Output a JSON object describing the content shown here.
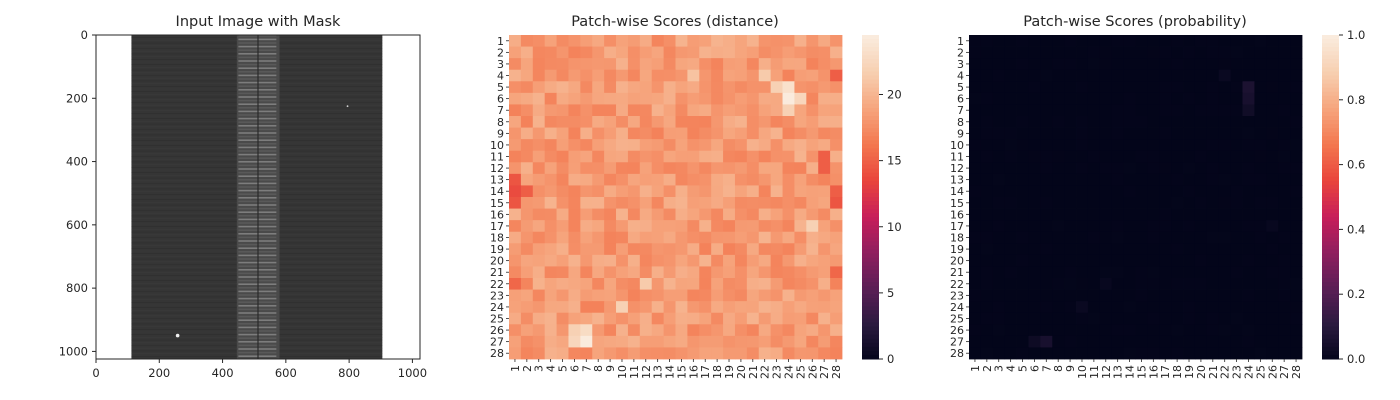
{
  "panels": [
    {
      "title": "Input Image with Mask",
      "type": "image",
      "xticks": [
        "0",
        "200",
        "400",
        "600",
        "800",
        "1000"
      ],
      "yticks": [
        "0",
        "200",
        "400",
        "600",
        "800",
        "1000"
      ],
      "xlim": [
        0,
        1024
      ],
      "ylim": [
        0,
        1024
      ],
      "image_colors": {
        "background": "#ffffff",
        "fabric": "#353535",
        "zipper": "#4a4a4a"
      }
    },
    {
      "title": "Patch-wise Scores (distance)",
      "type": "heatmap",
      "colorbar_ticks": [
        "0",
        "5",
        "10",
        "15",
        "20"
      ],
      "colorbar_range": [
        0,
        24.5
      ]
    },
    {
      "title": "Patch-wise Scores (probability)",
      "type": "heatmap",
      "colorbar_ticks": [
        "0.0",
        "0.2",
        "0.4",
        "0.6",
        "0.8",
        "1.0"
      ],
      "colorbar_range": [
        0,
        1
      ]
    }
  ],
  "chart_data": [
    {
      "type": "image",
      "title": "Input Image with Mask",
      "xlim": [
        0,
        1024
      ],
      "ylim": [
        1024,
        0
      ],
      "xticks": [
        0,
        200,
        400,
        600,
        800,
        1000
      ],
      "yticks": [
        0,
        200,
        400,
        600,
        800,
        1000
      ]
    },
    {
      "type": "heatmap",
      "title": "Patch-wise Scores (distance)",
      "x_labels": [
        "1",
        "2",
        "3",
        "4",
        "5",
        "6",
        "7",
        "8",
        "9",
        "10",
        "11",
        "12",
        "13",
        "14",
        "15",
        "16",
        "17",
        "18",
        "19",
        "20",
        "21",
        "22",
        "23",
        "24",
        "25",
        "26",
        "27",
        "28"
      ],
      "y_labels": [
        "1",
        "2",
        "3",
        "4",
        "5",
        "6",
        "7",
        "8",
        "9",
        "10",
        "11",
        "12",
        "13",
        "14",
        "15",
        "16",
        "17",
        "18",
        "19",
        "20",
        "21",
        "22",
        "23",
        "24",
        "25",
        "26",
        "27",
        "28"
      ],
      "value_range": [
        0,
        24.5
      ],
      "base_value": 18.5,
      "hotspots": [
        {
          "row": 6,
          "col": 24,
          "value": 24.5
        },
        {
          "row": 5,
          "col": 24,
          "value": 23.5
        },
        {
          "row": 5,
          "col": 23,
          "value": 22.0
        },
        {
          "row": 6,
          "col": 25,
          "value": 22.5
        },
        {
          "row": 7,
          "col": 24,
          "value": 22.0
        },
        {
          "row": 27,
          "col": 7,
          "value": 24.5
        },
        {
          "row": 26,
          "col": 7,
          "value": 23.0
        },
        {
          "row": 27,
          "col": 6,
          "value": 22.5
        },
        {
          "row": 26,
          "col": 6,
          "value": 22.0
        },
        {
          "row": 24,
          "col": 10,
          "value": 22.0
        },
        {
          "row": 22,
          "col": 12,
          "value": 21.5
        },
        {
          "row": 17,
          "col": 26,
          "value": 22.0
        },
        {
          "row": 4,
          "col": 16,
          "value": 21.0
        },
        {
          "row": 4,
          "col": 22,
          "value": 21.5
        }
      ],
      "coldspots": [
        {
          "row": 13,
          "col": 1,
          "value": 14.5
        },
        {
          "row": 14,
          "col": 1,
          "value": 14.0
        },
        {
          "row": 15,
          "col": 1,
          "value": 14.5
        },
        {
          "row": 14,
          "col": 2,
          "value": 15.0
        },
        {
          "row": 15,
          "col": 28,
          "value": 14.5
        },
        {
          "row": 14,
          "col": 28,
          "value": 15.0
        },
        {
          "row": 4,
          "col": 28,
          "value": 15.0
        },
        {
          "row": 11,
          "col": 27,
          "value": 15.0
        },
        {
          "row": 12,
          "col": 27,
          "value": 15.0
        },
        {
          "row": 22,
          "col": 1,
          "value": 15.5
        },
        {
          "row": 21,
          "col": 28,
          "value": 15.5
        }
      ]
    },
    {
      "type": "heatmap",
      "title": "Patch-wise Scores (probability)",
      "x_labels": [
        "1",
        "2",
        "3",
        "4",
        "5",
        "6",
        "7",
        "8",
        "9",
        "10",
        "11",
        "12",
        "13",
        "14",
        "15",
        "16",
        "17",
        "18",
        "19",
        "20",
        "21",
        "22",
        "23",
        "24",
        "25",
        "26",
        "27",
        "28"
      ],
      "y_labels": [
        "1",
        "2",
        "3",
        "4",
        "5",
        "6",
        "7",
        "8",
        "9",
        "10",
        "11",
        "12",
        "13",
        "14",
        "15",
        "16",
        "17",
        "18",
        "19",
        "20",
        "21",
        "22",
        "23",
        "24",
        "25",
        "26",
        "27",
        "28"
      ],
      "value_range": [
        0,
        1
      ],
      "base_value": 0.0,
      "hotspots": [
        {
          "row": 5,
          "col": 24,
          "value": 0.07
        },
        {
          "row": 6,
          "col": 24,
          "value": 0.06
        },
        {
          "row": 7,
          "col": 24,
          "value": 0.04
        },
        {
          "row": 4,
          "col": 22,
          "value": 0.02
        },
        {
          "row": 27,
          "col": 7,
          "value": 0.06
        },
        {
          "row": 27,
          "col": 6,
          "value": 0.03
        },
        {
          "row": 24,
          "col": 10,
          "value": 0.02
        },
        {
          "row": 22,
          "col": 12,
          "value": 0.015
        },
        {
          "row": 17,
          "col": 26,
          "value": 0.015
        }
      ]
    }
  ]
}
